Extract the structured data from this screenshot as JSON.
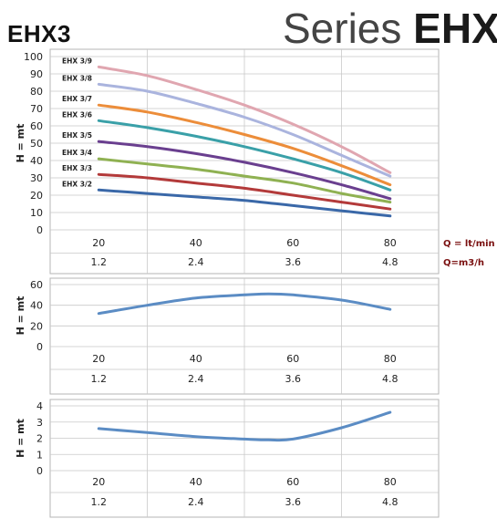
{
  "header": {
    "model": "EHX3",
    "series_prefix": "Series",
    "series_name": "EHX"
  },
  "x_axis": {
    "top_row": [
      "20",
      "40",
      "60",
      "80"
    ],
    "bottom_row": [
      "1.2",
      "2.4",
      "3.6",
      "4.8"
    ],
    "top_unit": "Q = lt/min",
    "bottom_unit": "Q=m3/h"
  },
  "colors": {
    "EHX 3/9": "#e0a6b0",
    "EHX 3/8": "#aab4de",
    "EHX 3/7": "#ec8d3a",
    "EHX 3/6": "#3aa0a8",
    "EHX 3/5": "#6a3f8f",
    "EHX 3/4": "#8fb152",
    "EHX 3/3": "#b33a3a",
    "EHX 3/2": "#3a68a8",
    "single": "#5b8cc4",
    "grid": "#c9c9c9"
  },
  "chart_data": [
    {
      "type": "line",
      "ylabel": "H = mt",
      "x": [
        20,
        30,
        40,
        50,
        60,
        70,
        80
      ],
      "xlim": [
        10,
        90
      ],
      "ylim": [
        0,
        100
      ],
      "yticks": [
        0,
        10,
        20,
        30,
        40,
        50,
        60,
        70,
        80,
        90,
        100
      ],
      "grid": true,
      "series": [
        {
          "name": "EHX 3/9",
          "values": [
            94,
            89,
            81,
            72,
            61,
            48,
            33
          ]
        },
        {
          "name": "EHX 3/8",
          "values": [
            84,
            80,
            73,
            65,
            55,
            43,
            31
          ]
        },
        {
          "name": "EHX 3/7",
          "values": [
            72,
            68,
            62,
            55,
            47,
            37,
            26
          ]
        },
        {
          "name": "EHX 3/6",
          "values": [
            63,
            59,
            54,
            48,
            41,
            33,
            23
          ]
        },
        {
          "name": "EHX 3/5",
          "values": [
            51,
            48,
            44,
            39,
            33,
            26,
            18
          ]
        },
        {
          "name": "EHX 3/4",
          "values": [
            41,
            38,
            35,
            31,
            27,
            21,
            16
          ]
        },
        {
          "name": "EHX 3/3",
          "values": [
            32,
            30,
            27,
            24,
            20,
            16,
            12
          ]
        },
        {
          "name": "EHX 3/2",
          "values": [
            23,
            21,
            19,
            17,
            14,
            11,
            8
          ]
        }
      ]
    },
    {
      "type": "line",
      "ylabel": "H = mt",
      "x": [
        20,
        30,
        40,
        50,
        55,
        60,
        70,
        80
      ],
      "xlim": [
        10,
        90
      ],
      "ylim": [
        0,
        60
      ],
      "yticks": [
        0,
        20,
        40,
        60
      ],
      "grid": true,
      "series": [
        {
          "values": [
            32,
            40,
            47,
            50,
            51,
            50,
            45,
            36
          ]
        }
      ]
    },
    {
      "type": "line",
      "ylabel": "H = mt",
      "x": [
        20,
        30,
        40,
        50,
        55,
        60,
        70,
        80
      ],
      "xlim": [
        10,
        90
      ],
      "ylim": [
        0,
        4
      ],
      "yticks": [
        0,
        1,
        2,
        3,
        4
      ],
      "grid": true,
      "series": [
        {
          "values": [
            2.6,
            2.35,
            2.1,
            1.95,
            1.9,
            1.95,
            2.65,
            3.6
          ]
        }
      ]
    }
  ]
}
